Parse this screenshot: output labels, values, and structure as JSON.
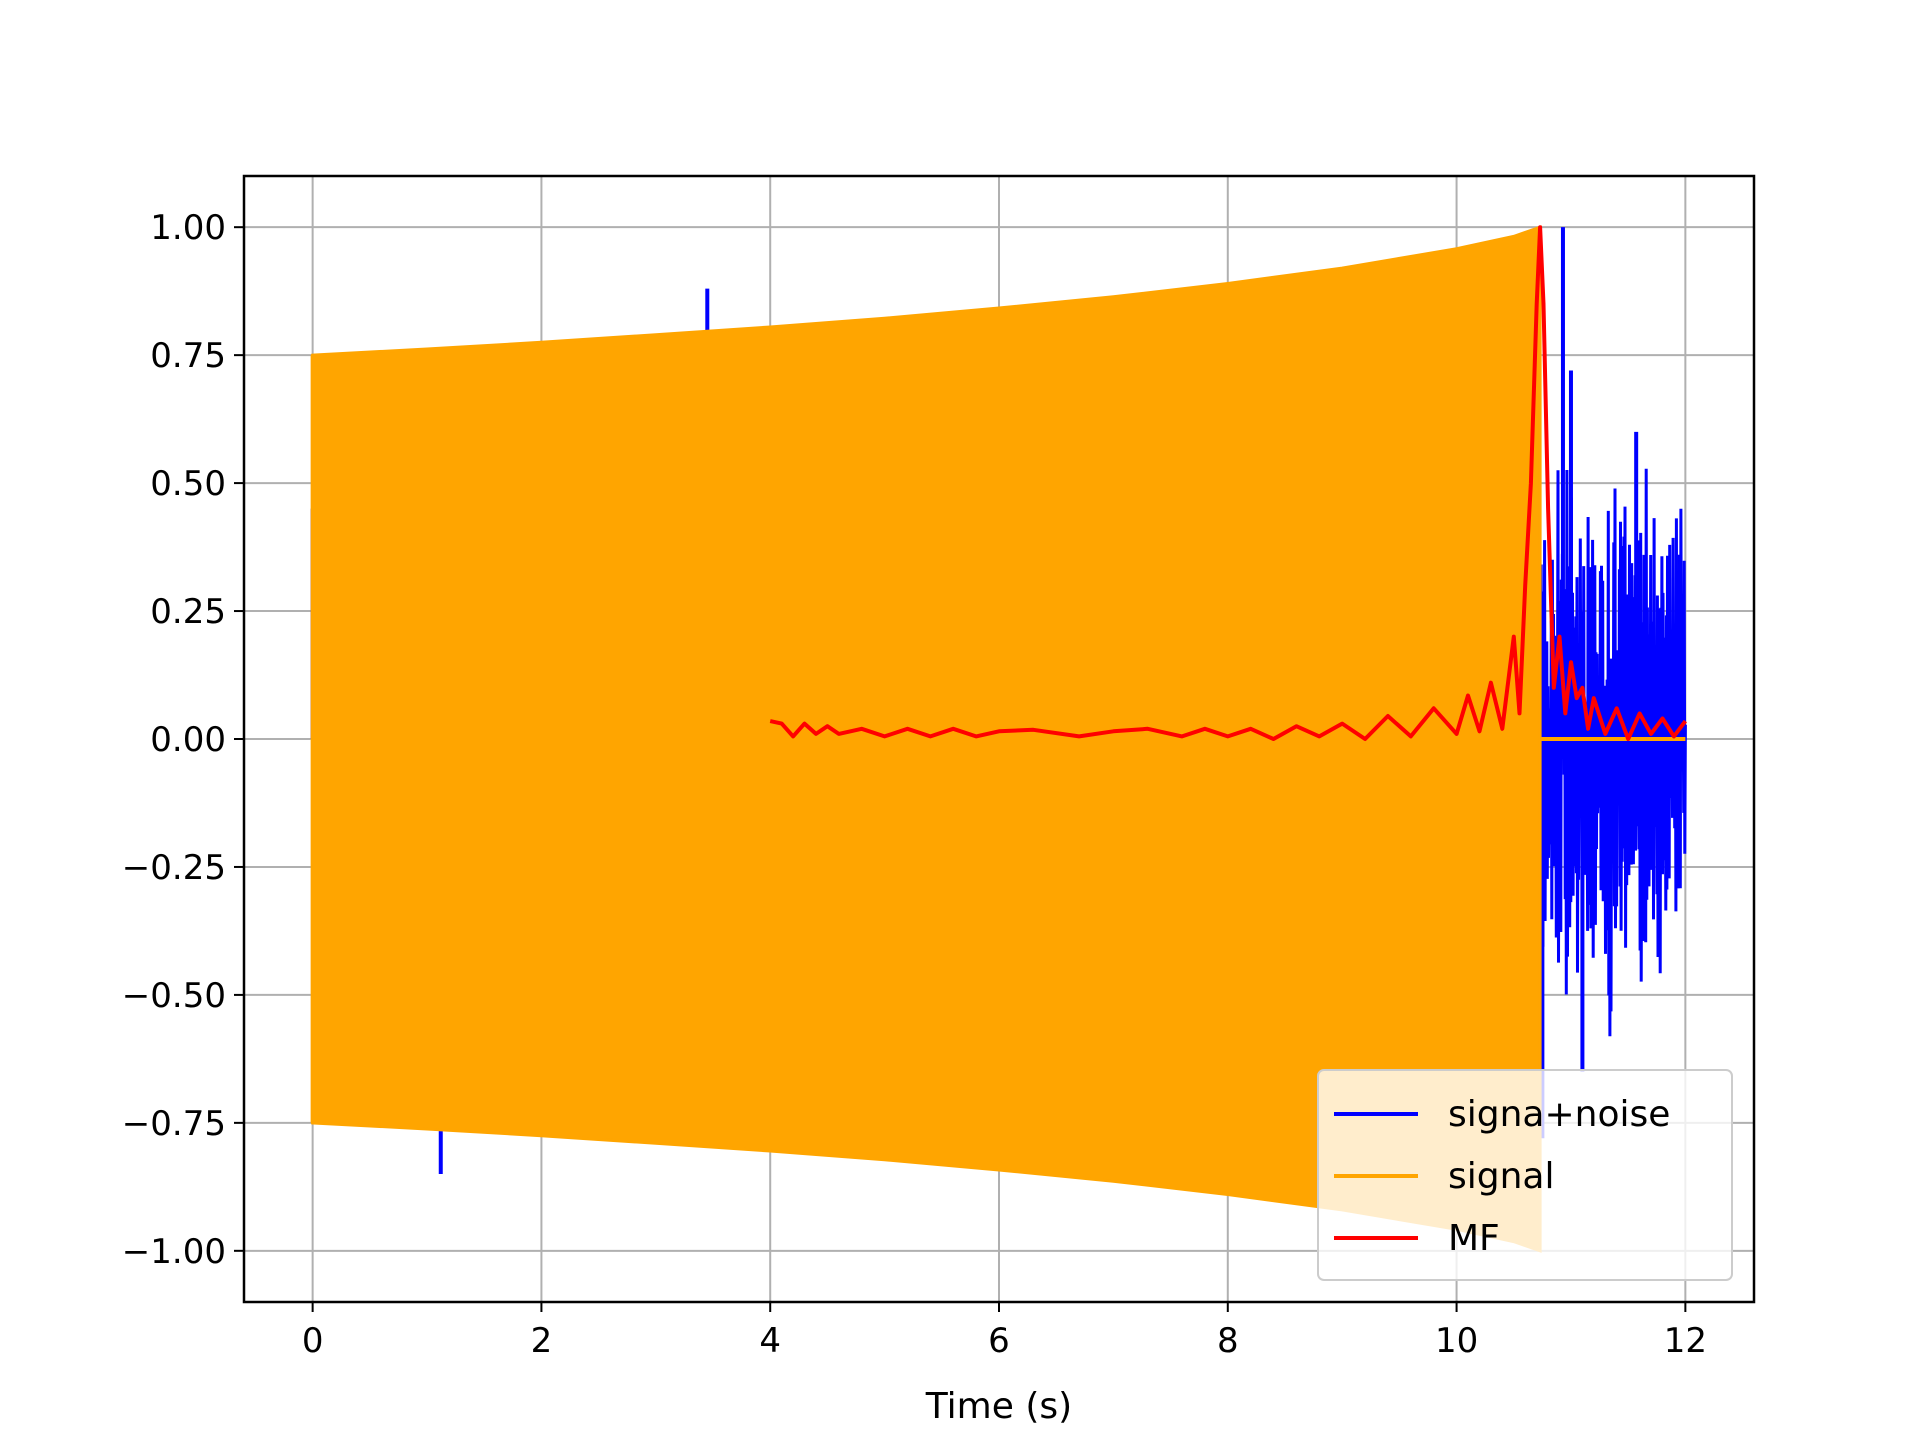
{
  "chart_data": {
    "type": "line",
    "title": "",
    "xlabel": "Time (s)",
    "ylabel": "",
    "xlim": [
      -0.6,
      12.6
    ],
    "ylim": [
      -1.1,
      1.1
    ],
    "xticks": [
      0,
      2,
      4,
      6,
      8,
      10,
      12
    ],
    "xtick_labels": [
      "0",
      "2",
      "4",
      "6",
      "8",
      "10",
      "12"
    ],
    "yticks": [
      1.0,
      0.75,
      0.5,
      0.25,
      0.0,
      -0.25,
      -0.5,
      -0.75,
      -1.0
    ],
    "ytick_labels": [
      "1.00",
      "0.75",
      "0.50",
      "0.25",
      "0.00",
      "−0.25",
      "−0.50",
      "−0.75",
      "−1.00"
    ],
    "grid": true,
    "legend_position": "lower right",
    "series": [
      {
        "name": "signa+noise",
        "color": "#0000ff",
        "description_points": {
          "spikes": [
            [
              0.0,
              0.45
            ],
            [
              1.12,
              -0.85
            ],
            [
              3.45,
              0.88
            ],
            [
              10.75,
              -0.78
            ],
            [
              10.93,
              1.0
            ],
            [
              11.0,
              0.72
            ],
            [
              11.1,
              -0.65
            ],
            [
              11.57,
              0.6
            ],
            [
              11.95,
              0.36
            ]
          ],
          "x_start": 0.0,
          "x_end": 12.0
        }
      },
      {
        "name": "signal",
        "color": "#ffa500",
        "envelope": {
          "x": [
            0.0,
            1.0,
            2.0,
            3.0,
            4.0,
            5.0,
            6.0,
            7.0,
            8.0,
            9.0,
            10.0,
            10.5,
            10.73
          ],
          "upper": [
            0.75,
            0.762,
            0.775,
            0.79,
            0.805,
            0.822,
            0.842,
            0.864,
            0.89,
            0.92,
            0.958,
            0.982,
            1.0
          ],
          "lower": [
            -0.75,
            -0.762,
            -0.775,
            -0.79,
            -0.805,
            -0.822,
            -0.842,
            -0.864,
            -0.89,
            -0.92,
            -0.958,
            -0.982,
            -1.0
          ]
        },
        "x_end_signal": 10.73,
        "x_end": 12.0
      },
      {
        "name": "MF",
        "color": "#ff0000",
        "x": [
          4.0,
          4.1,
          4.2,
          4.3,
          4.4,
          4.5,
          4.6,
          4.8,
          5.0,
          5.2,
          5.4,
          5.6,
          5.8,
          6.0,
          6.3,
          6.7,
          7.0,
          7.3,
          7.6,
          7.8,
          8.0,
          8.2,
          8.4,
          8.6,
          8.8,
          9.0,
          9.2,
          9.4,
          9.6,
          9.8,
          10.0,
          10.1,
          10.2,
          10.3,
          10.4,
          10.5,
          10.55,
          10.6,
          10.65,
          10.7,
          10.73,
          10.76,
          10.8,
          10.85,
          10.9,
          10.95,
          11.0,
          11.05,
          11.1,
          11.15,
          11.2,
          11.3,
          11.4,
          11.5,
          11.6,
          11.7,
          11.8,
          11.9,
          12.0
        ],
        "y": [
          0.035,
          0.03,
          0.005,
          0.03,
          0.01,
          0.025,
          0.01,
          0.02,
          0.005,
          0.02,
          0.005,
          0.02,
          0.005,
          0.015,
          0.018,
          0.005,
          0.015,
          0.02,
          0.005,
          0.02,
          0.005,
          0.02,
          0.0,
          0.025,
          0.005,
          0.03,
          0.0,
          0.045,
          0.005,
          0.06,
          0.01,
          0.085,
          0.015,
          0.11,
          0.02,
          0.2,
          0.05,
          0.3,
          0.5,
          0.85,
          1.0,
          0.85,
          0.45,
          0.1,
          0.2,
          0.05,
          0.15,
          0.08,
          0.1,
          0.02,
          0.08,
          0.01,
          0.06,
          0.0,
          0.05,
          0.01,
          0.04,
          0.005,
          0.035
        ]
      }
    ]
  }
}
